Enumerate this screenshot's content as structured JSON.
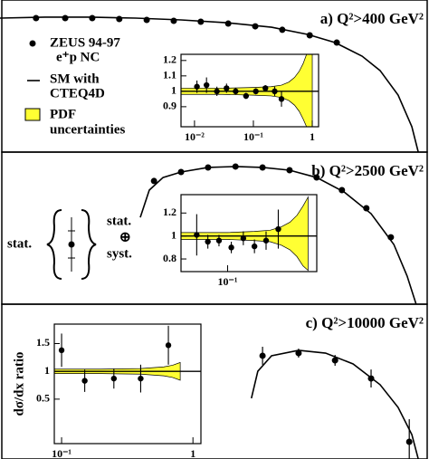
{
  "chart_data": [
    {
      "type": "scatter",
      "title": "a) Q²>400 GeV²",
      "xscale": "linear",
      "xlim": [
        0,
        100
      ],
      "ylim": [
        0,
        100
      ],
      "x": [
        8.4,
        15.2,
        21.5,
        27.8,
        34.2,
        40.5,
        46.8,
        53.2,
        59.5,
        65.8,
        72.2,
        78.5
      ],
      "values": [
        88.1,
        88.1,
        88.1,
        87.5,
        86.9,
        86.3,
        85.7,
        84.5,
        82.7,
        80.4,
        76.8,
        72.0
      ],
      "curve": {
        "x": [
          0,
          10.5,
          21.1,
          31.6,
          42.2,
          52.7,
          63.3,
          71.7,
          78.1,
          84.4,
          88.6,
          92.8,
          96.0,
          97.5
        ],
        "values": [
          88.1,
          88.7,
          88.7,
          88.1,
          86.9,
          85.1,
          82.1,
          77.4,
          72.0,
          63.1,
          53.6,
          37.5,
          16.7,
          0
        ]
      },
      "legend": [
        "ZEUS 94-97",
        "e⁺p NC",
        "SM with",
        "CTEQ4D",
        "PDF",
        "uncertainties"
      ],
      "band_color": "#ffff33"
    },
    {
      "type": "errorbar",
      "xscale": "log",
      "xlim": [
        0.0059,
        1.28
      ],
      "ylim": [
        0.77,
        1.24
      ],
      "reference": 1,
      "xticks": [
        {
          "value": 0.01,
          "label": "10⁻²"
        },
        {
          "value": 0.1,
          "label": "10⁻¹"
        },
        1
      ],
      "yticks": [
        1.2,
        1.1,
        1,
        0.9
      ],
      "x": [
        0.011,
        0.016,
        0.024,
        0.035,
        0.05,
        0.075,
        0.11,
        0.16,
        0.23,
        0.3
      ],
      "values": [
        1.03,
        1.04,
        1.0,
        1.02,
        1.0,
        0.97,
        1.0,
        1.02,
        1.0,
        0.95
      ],
      "errors": [
        0.04,
        0.05,
        0.03,
        0.03,
        0.02,
        0.02,
        0.02,
        0.02,
        0.03,
        0.05
      ],
      "band_x": [
        0.0059,
        0.01,
        0.03,
        0.1,
        0.2,
        0.3,
        0.4,
        0.5,
        0.6,
        0.7,
        0.8,
        1.0
      ],
      "band_upper": [
        1.02,
        1.02,
        1.02,
        1.025,
        1.03,
        1.04,
        1.06,
        1.09,
        1.13,
        1.18,
        1.24,
        1.24
      ],
      "band_lower": [
        0.98,
        0.98,
        0.98,
        0.975,
        0.97,
        0.96,
        0.94,
        0.91,
        0.87,
        0.82,
        0.77,
        0.77
      ],
      "band_color": "#ffff33"
    },
    {
      "type": "scatter",
      "title": "b) Q²>2500 GeV²",
      "xscale": "linear",
      "xlim": [
        0,
        100
      ],
      "ylim": [
        0,
        100
      ],
      "x": [
        35.9,
        42.2,
        48.5,
        54.9,
        61.2,
        67.5,
        73.8,
        79.7,
        85.4,
        91.1
      ],
      "values": [
        81.0,
        86.9,
        89.9,
        90.5,
        89.9,
        88.1,
        83.3,
        75.0,
        63.1,
        44.0
      ],
      "curve": {
        "x": [
          32.7,
          34.8,
          38.0,
          42.2,
          48.5,
          54.9,
          61.2,
          67.5,
          73.8,
          80.2,
          86.5,
          91.8,
          94.9,
          97.0
        ],
        "values": [
          57.1,
          75.0,
          83.3,
          86.9,
          89.9,
          90.5,
          89.9,
          88.1,
          83.3,
          73.8,
          59.5,
          39.3,
          18.5,
          0
        ]
      },
      "notes": [
        "stat.",
        "stat.",
        "⊕",
        "syst."
      ]
    },
    {
      "type": "errorbar",
      "xscale": "log",
      "xlim": [
        0.03,
        1.0
      ],
      "ylim": [
        0.69,
        1.36
      ],
      "reference": 1,
      "xticks": [
        {
          "value": 0.1,
          "label": "10⁻¹"
        }
      ],
      "yticks": [
        1.2,
        1,
        0.8
      ],
      "x": [
        0.045,
        0.06,
        0.08,
        0.11,
        0.15,
        0.2,
        0.27,
        0.37
      ],
      "values": [
        1.01,
        0.95,
        0.96,
        0.9,
        0.98,
        0.91,
        0.96,
        1.06
      ],
      "errors": [
        0.18,
        0.06,
        0.05,
        0.05,
        0.06,
        0.06,
        0.08,
        0.17
      ],
      "band_x": [
        0.03,
        0.1,
        0.2,
        0.3,
        0.4,
        0.5,
        0.6,
        0.7,
        0.8
      ],
      "band_upper": [
        1.03,
        1.03,
        1.04,
        1.05,
        1.08,
        1.12,
        1.18,
        1.26,
        1.34
      ],
      "band_lower": [
        0.97,
        0.97,
        0.96,
        0.95,
        0.92,
        0.88,
        0.82,
        0.74,
        0.7
      ],
      "band_color": "#ffff33"
    },
    {
      "type": "scatter",
      "title": "c) Q²>10000 GeV²",
      "xscale": "linear",
      "xlim": [
        0,
        100
      ],
      "ylim": [
        0,
        100
      ],
      "x": [
        61.2,
        69.6,
        78.1,
        86.5,
        95.4
      ],
      "values": [
        66.7,
        68.4,
        63.7,
        52.0,
        11.1
      ],
      "errors": [
        5.8,
        2.9,
        3.5,
        5.8,
        14.6
      ],
      "curve": {
        "x": [
          58.6,
          60.1,
          63.3,
          69.6,
          75.9,
          82.3,
          88.6,
          92.8,
          96.0,
          97.5
        ],
        "values": [
          39.2,
          56.7,
          66.7,
          70.2,
          68.4,
          61.4,
          48.0,
          33.3,
          15.8,
          0
        ]
      }
    },
    {
      "type": "errorbar",
      "xscale": "log",
      "xlim": [
        0.088,
        1.15
      ],
      "ylim": [
        -0.3,
        1.85
      ],
      "reference": 1,
      "y_label": "dσ/dx ratio",
      "xticks": [
        {
          "value": 0.1,
          "label": "10⁻¹"
        },
        1
      ],
      "yticks": [
        1.5,
        1,
        0.5
      ],
      "x": [
        0.1,
        0.15,
        0.25,
        0.4,
        0.65
      ],
      "values": [
        1.38,
        0.83,
        0.87,
        0.87,
        1.47
      ],
      "errors": [
        0.3,
        0.2,
        0.18,
        0.25,
        0.35
      ],
      "band_x": [
        0.088,
        0.2,
        0.4,
        0.6,
        0.7,
        0.8
      ],
      "band_upper": [
        1.04,
        1.04,
        1.05,
        1.08,
        1.11,
        1.16
      ],
      "band_lower": [
        0.96,
        0.96,
        0.95,
        0.92,
        0.89,
        0.84
      ],
      "band_color": "#ffff33"
    }
  ]
}
